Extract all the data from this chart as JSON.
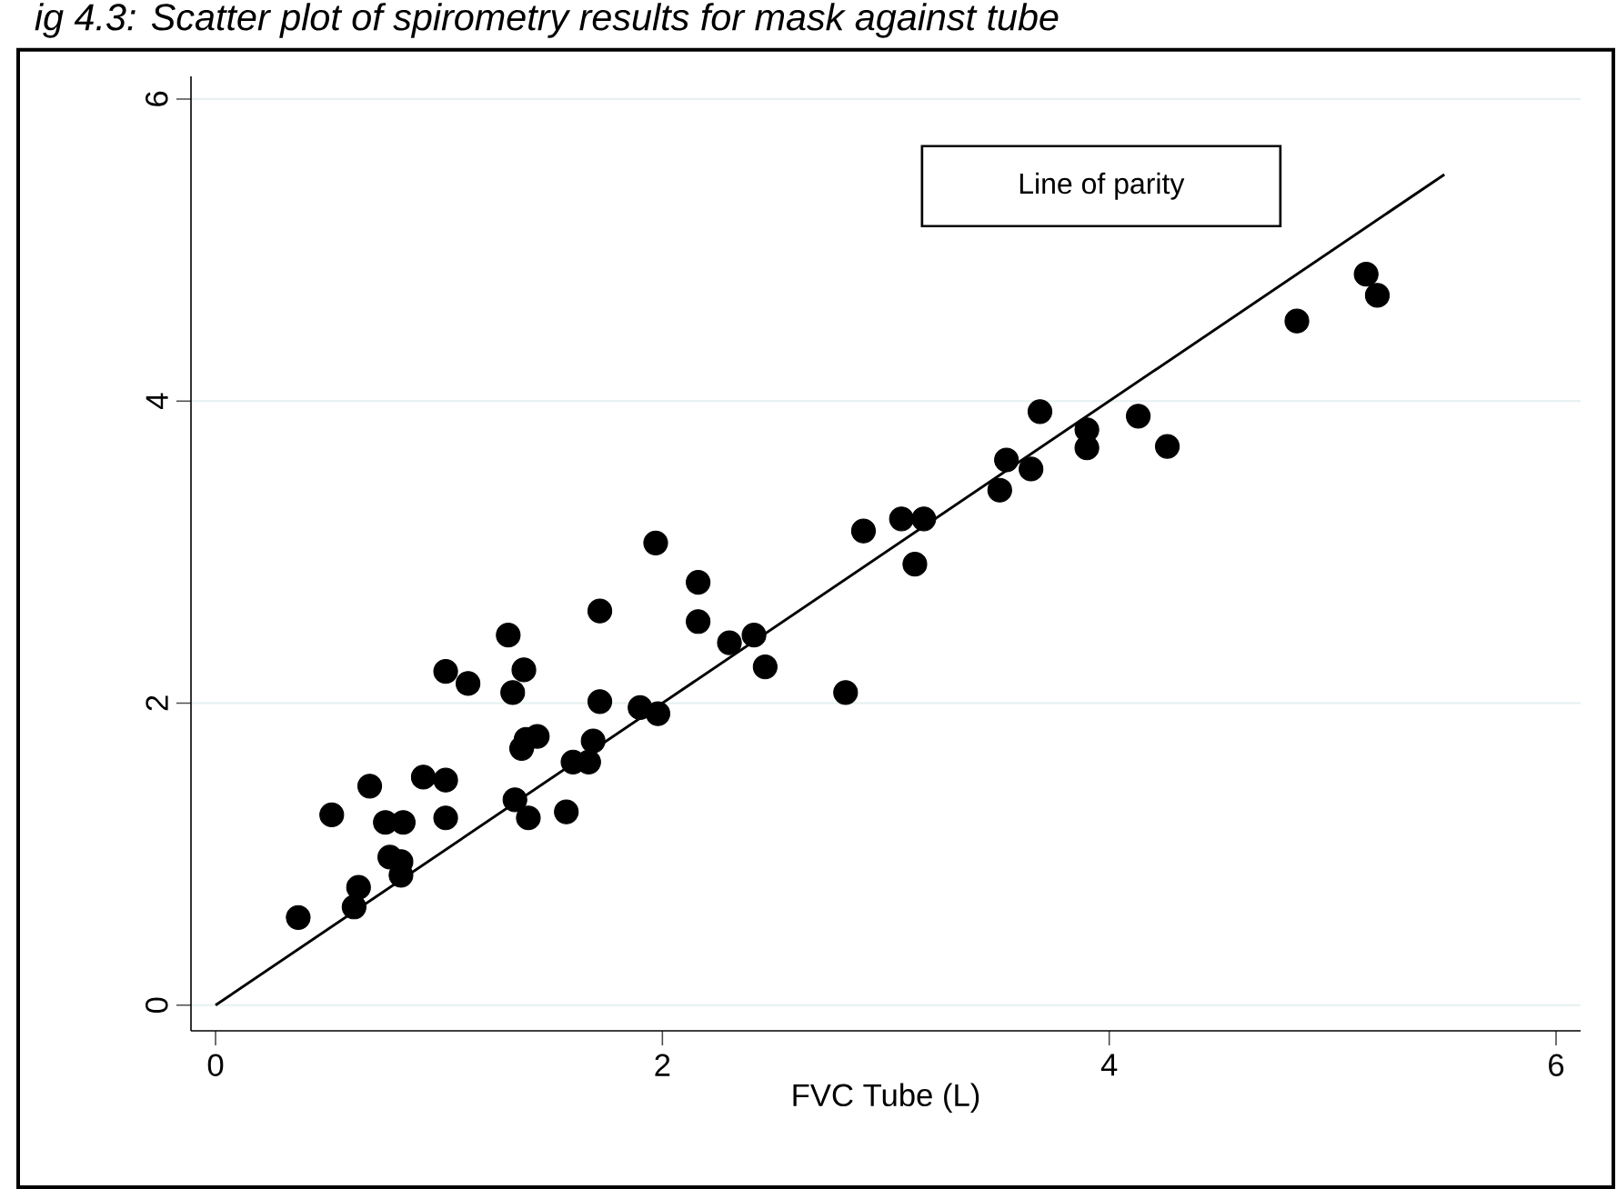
{
  "chart_data": {
    "type": "scatter",
    "title": "ig 4.3: Scatter plot of spirometry results for mask against tube",
    "xlabel": "FVC Tube (L)",
    "xlim": [
      -0.11,
      6.11
    ],
    "ylim": [
      -0.17,
      6.15
    ],
    "xticks": [
      0,
      2,
      4,
      6
    ],
    "yticks": [
      0,
      2,
      4,
      6
    ],
    "grid": "y",
    "series": [
      {
        "color": "#000000",
        "marker": "circle",
        "x": [
          0.37,
          0.62,
          0.64,
          0.52,
          0.69,
          0.78,
          0.83,
          0.83,
          0.76,
          0.84,
          0.93,
          1.03,
          1.03,
          1.34,
          1.4,
          1.37,
          1.39,
          1.44,
          1.57,
          1.6,
          1.67,
          1.69,
          1.72,
          1.03,
          1.13,
          1.31,
          1.38,
          1.33,
          1.72,
          1.97,
          1.9,
          1.98,
          2.16,
          2.16,
          2.3,
          2.41,
          2.46,
          2.82,
          2.9,
          3.07,
          3.17,
          3.13,
          3.51,
          3.54,
          3.65,
          3.69,
          3.9,
          3.9,
          4.13,
          4.26,
          4.84,
          5.15,
          5.2
        ],
        "values": [
          0.58,
          0.65,
          0.78,
          1.26,
          1.45,
          0.98,
          0.95,
          0.86,
          1.21,
          1.21,
          1.51,
          1.49,
          1.24,
          1.36,
          1.24,
          1.7,
          1.76,
          1.78,
          1.28,
          1.61,
          1.61,
          1.75,
          2.01,
          2.21,
          2.13,
          2.45,
          2.22,
          2.07,
          2.61,
          3.06,
          1.97,
          1.93,
          2.8,
          2.54,
          2.4,
          2.45,
          2.24,
          2.07,
          3.14,
          3.22,
          3.22,
          2.92,
          3.41,
          3.61,
          3.55,
          3.93,
          3.81,
          3.69,
          3.9,
          3.7,
          4.53,
          4.84,
          4.7
        ]
      },
      {
        "type": "line",
        "name": "Line of parity",
        "color": "#000000",
        "x": [
          0,
          5.5
        ],
        "values": [
          0,
          5.5
        ]
      }
    ]
  }
}
